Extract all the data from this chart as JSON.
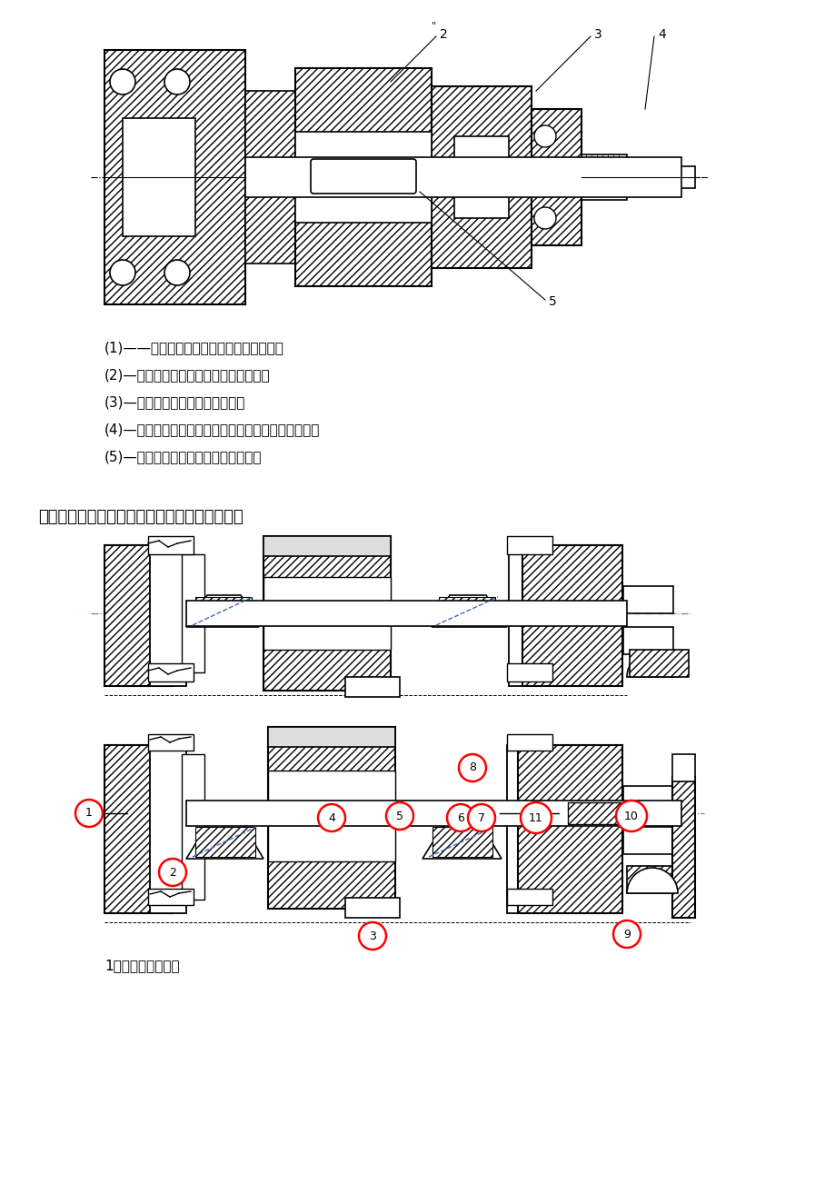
{
  "background_color": "#ffffff",
  "page_width": 9.2,
  "page_height": 13.03,
  "texts_section1": [
    "(1)——轴肩的高度超出了轴承内圈的外径；",
    "(2)—一轴段的长度应该小于轮毅的宽度；",
    "(3)—一螺纹轴段缺少螺纹退刀槽；",
    "(4)—一键槽应该与中间部位的键槽在同一母线上布置；",
    "(5)—一键的长度应该小于轴段的长度。"
  ],
  "header7": "七、试指出图中结构不合理的地方，并予以改正",
  "bottom_text": "1、此处应有垫片；",
  "circle_labels": [
    "1",
    "2",
    "3",
    "4",
    "5",
    "6",
    "7",
    "8",
    "9",
    "10",
    "11"
  ],
  "annot_nums_top": [
    "2",
    "3",
    "4",
    "5"
  ]
}
